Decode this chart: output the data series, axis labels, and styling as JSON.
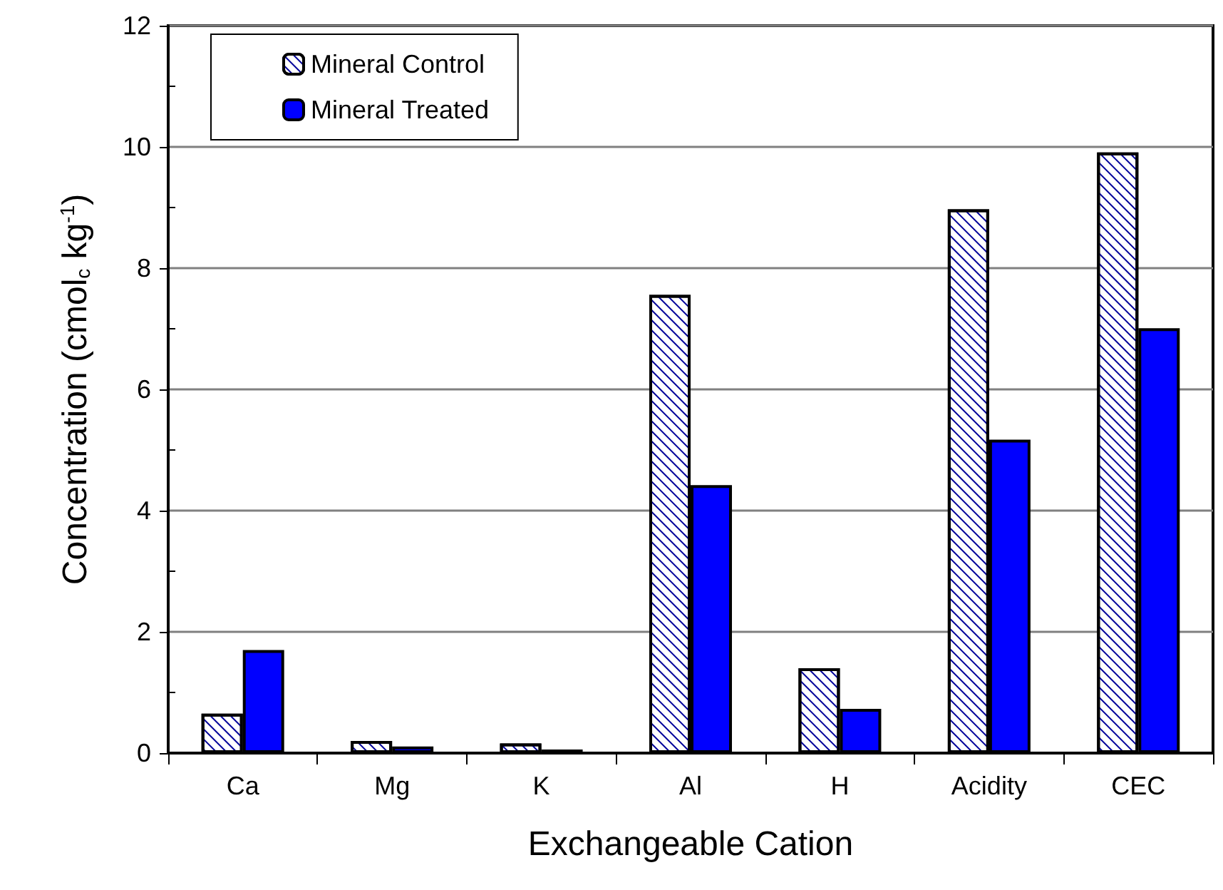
{
  "chart_data": {
    "type": "bar",
    "xlabel": "Exchangeable Cation",
    "ylabel": "Concentration (cmol$_{c}$ kg$^{-1}$)",
    "categories": [
      "Ca",
      "Mg",
      "K",
      "Al",
      "H",
      "Acidity",
      "CEC"
    ],
    "series": [
      {
        "name": "Mineral Control",
        "color": "#ffffff",
        "values": [
          0.65,
          0.2,
          0.16,
          7.56,
          1.4,
          8.97,
          9.91
        ]
      },
      {
        "name": "Mineral Treated",
        "color": "#0000ff",
        "values": [
          1.7,
          0.11,
          0.06,
          4.42,
          0.73,
          5.17,
          7.01
        ]
      }
    ],
    "ylim": [
      0,
      12
    ],
    "yticks": [
      0,
      2,
      4,
      6,
      8,
      10,
      12
    ],
    "grid": "y",
    "legend": "top left"
  }
}
